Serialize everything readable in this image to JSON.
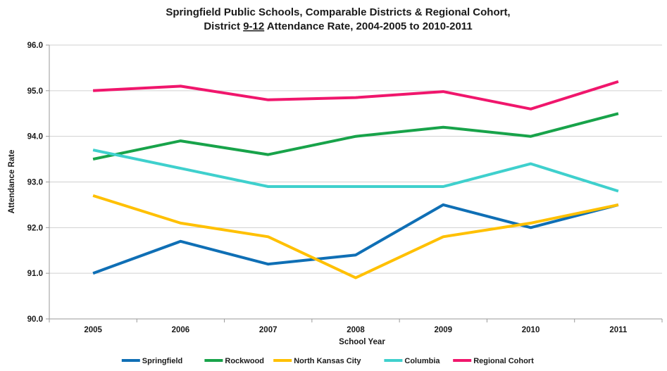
{
  "chart_data": {
    "type": "line",
    "title_parts": [
      "Springfield Public Schools, Comparable Districts & Regional Cohort,",
      "District ",
      "9-12",
      " Attendance Rate, 2004-2005 to 2010-2011"
    ],
    "xlabel": "School Year",
    "ylabel": "Attendance Rate",
    "categories": [
      "2005",
      "2006",
      "2007",
      "2008",
      "2009",
      "2010",
      "2011"
    ],
    "ylim": [
      90.0,
      96.0
    ],
    "yticks": [
      "90.0",
      "91.0",
      "92.0",
      "93.0",
      "94.0",
      "95.0",
      "96.0"
    ],
    "grid": "horizontal",
    "legend_position": "bottom",
    "series": [
      {
        "name": "Springfield",
        "color": "#0f6fb5",
        "values": [
          91.0,
          91.7,
          91.2,
          91.4,
          92.5,
          92.0,
          92.5
        ]
      },
      {
        "name": "Rockwood",
        "color": "#18a34a",
        "values": [
          93.5,
          93.9,
          93.6,
          94.0,
          94.2,
          94.0,
          94.5
        ]
      },
      {
        "name": "North Kansas City",
        "color": "#ffc000",
        "values": [
          92.7,
          92.1,
          91.8,
          90.9,
          91.8,
          92.1,
          92.5
        ]
      },
      {
        "name": "Columbia",
        "color": "#3fd0cd",
        "values": [
          93.7,
          93.3,
          92.9,
          92.9,
          92.9,
          93.4,
          92.8
        ]
      },
      {
        "name": "Regional Cohort",
        "color": "#f0166c",
        "values": [
          95.0,
          95.1,
          94.8,
          94.85,
          94.98,
          94.6,
          95.2
        ]
      }
    ]
  }
}
